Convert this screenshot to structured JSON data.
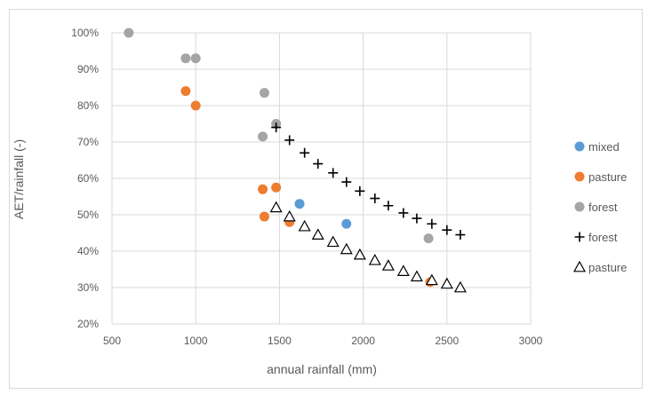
{
  "chart_data": {
    "type": "scatter",
    "xlabel": "annual rainfall (mm)",
    "ylabel": "AET/rainfall (-)",
    "xlim": [
      500,
      3000
    ],
    "ylim": [
      20,
      100
    ],
    "x_ticks": [
      "500",
      "1000",
      "1500",
      "2000",
      "2500",
      "3000"
    ],
    "y_ticks": [
      "20%",
      "30%",
      "40%",
      "50%",
      "60%",
      "70%",
      "80%",
      "90%",
      "100%"
    ],
    "grid": true,
    "legend_position": "right",
    "series": [
      {
        "name": "mixed",
        "marker": "circle",
        "color": "#5b9bd5",
        "x": [
          1620,
          1900
        ],
        "y": [
          53,
          47.5
        ]
      },
      {
        "name": "pasture",
        "marker": "circle",
        "color": "#ed7d31",
        "x": [
          940,
          1000,
          1400,
          1480,
          1410,
          1560,
          2400
        ],
        "y": [
          84,
          80,
          57,
          57.5,
          49.5,
          48,
          31.5
        ]
      },
      {
        "name": "forest",
        "marker": "circle",
        "color": "#a5a5a5",
        "x": [
          600,
          940,
          1000,
          1410,
          1480,
          1400,
          2390
        ],
        "y": [
          100,
          93,
          93,
          83.5,
          75,
          71.5,
          43.5
        ]
      },
      {
        "name": "forest",
        "marker": "plus",
        "color": "#000000",
        "x": [
          1480,
          1560,
          1650,
          1730,
          1820,
          1900,
          1980,
          2070,
          2150,
          2240,
          2320,
          2410,
          2500,
          2580
        ],
        "y": [
          74,
          70.5,
          67,
          64,
          61.5,
          59,
          56.5,
          54.5,
          52.5,
          50.5,
          49,
          47.5,
          45.8,
          44.5
        ]
      },
      {
        "name": "pasture",
        "marker": "triangle",
        "color": "#000000",
        "x": [
          1480,
          1560,
          1650,
          1730,
          1820,
          1900,
          1980,
          2070,
          2150,
          2240,
          2320,
          2410,
          2500,
          2580
        ],
        "y": [
          52,
          49.5,
          46.8,
          44.5,
          42.5,
          40.5,
          39,
          37.5,
          36,
          34.5,
          33,
          32,
          31,
          30
        ]
      }
    ]
  }
}
